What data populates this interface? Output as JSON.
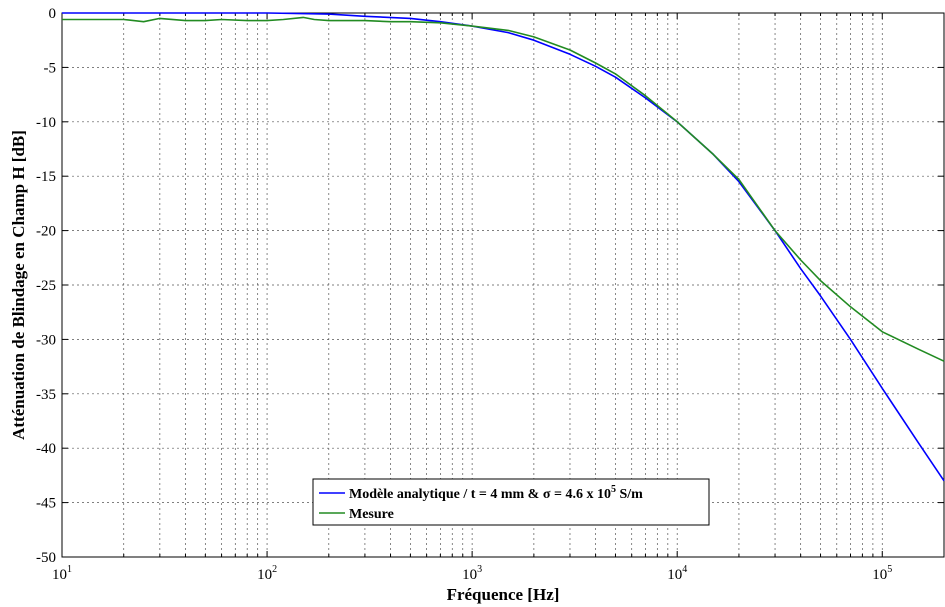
{
  "chart_data": {
    "type": "line",
    "title": "",
    "xlabel": "Fréquence [Hz]",
    "ylabel": "Atténuation de Blindage en Champ H [dB]",
    "x_scale": "log",
    "xlim": [
      10,
      200000
    ],
    "ylim": [
      -50,
      0
    ],
    "grid": true,
    "legend_position": "bottom-center",
    "x_ticks": [
      {
        "value": 10,
        "base": "10",
        "exp": "1"
      },
      {
        "value": 100,
        "base": "10",
        "exp": "2"
      },
      {
        "value": 1000,
        "base": "10",
        "exp": "3"
      },
      {
        "value": 10000,
        "base": "10",
        "exp": "4"
      },
      {
        "value": 100000,
        "base": "10",
        "exp": "5"
      }
    ],
    "y_ticks": [
      0,
      -5,
      -10,
      -15,
      -20,
      -25,
      -30,
      -35,
      -40,
      -45,
      -50
    ],
    "series": [
      {
        "name": "Modèle analytique / t = 4 mm & σ = 4.6 x 10⁵ S/m",
        "legend_text_main": "Modèle analytique / t = 4 mm & σ = 4.6 x 10",
        "legend_text_sup": "5",
        "legend_text_end": " S/m",
        "color": "#0000ff",
        "x": [
          10,
          100,
          200,
          300,
          500,
          700,
          1000,
          1500,
          2000,
          3000,
          4000,
          5000,
          7000,
          10000,
          15000,
          20000,
          30000,
          40000,
          50000,
          70000,
          100000,
          150000,
          200000
        ],
        "y": [
          0,
          0,
          -0.1,
          -0.3,
          -0.5,
          -0.8,
          -1.2,
          -1.8,
          -2.5,
          -3.8,
          -4.9,
          -5.9,
          -7.8,
          -10.0,
          -13.0,
          -15.5,
          -20.0,
          -23.5,
          -26.0,
          -30.0,
          -34.5,
          -39.5,
          -43.0
        ]
      },
      {
        "name": "Mesure",
        "legend_text_main": "Mesure",
        "color": "#228b22",
        "x": [
          10,
          20,
          25,
          30,
          40,
          50,
          60,
          80,
          100,
          120,
          150,
          170,
          200,
          300,
          400,
          500,
          700,
          1000,
          1500,
          2000,
          3000,
          4000,
          5000,
          7000,
          10000,
          15000,
          20000,
          30000,
          40000,
          50000,
          70000,
          100000,
          150000,
          200000
        ],
        "y": [
          -0.6,
          -0.6,
          -0.8,
          -0.5,
          -0.7,
          -0.7,
          -0.6,
          -0.7,
          -0.7,
          -0.6,
          -0.4,
          -0.6,
          -0.7,
          -0.7,
          -0.8,
          -0.8,
          -0.9,
          -1.2,
          -1.6,
          -2.2,
          -3.4,
          -4.6,
          -5.6,
          -7.6,
          -10.0,
          -13.0,
          -15.3,
          -20.0,
          -22.7,
          -24.6,
          -27.0,
          -29.3,
          -30.9,
          -32.0
        ]
      }
    ]
  }
}
